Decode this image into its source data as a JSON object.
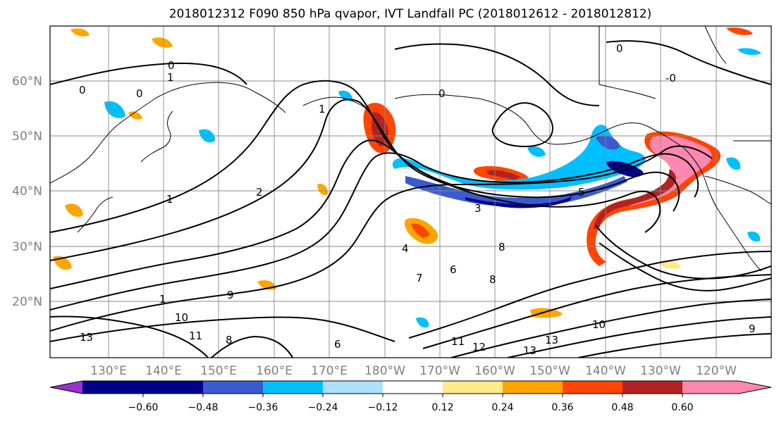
{
  "title": "2018012312 F090 850 hPa qvapor, IVT Landfall PC (2018012612 - 2018012812)",
  "latitude_labels": [
    "60°N",
    "50°N",
    "40°N",
    "30°N",
    "20°N"
  ],
  "longitude_labels": [
    "130°E",
    "140°E",
    "150°E",
    "160°E",
    "170°E",
    "180°W",
    "170°W",
    "160°W",
    "150°W",
    "140°W",
    "130°W",
    "120°W"
  ],
  "colorbar": {
    "colors": [
      "#9932cc",
      "#00008b",
      "#3a5bcf",
      "#00bfff",
      "#b0e0ff",
      "#ffffff",
      "#ffeb8a",
      "#ffa500",
      "#ff4500",
      "#b22222",
      "#ff88b0"
    ],
    "tick_labels": [
      "−0.60",
      "−0.48",
      "−0.36",
      "−0.24",
      "−0.12",
      "0.12",
      "0.24",
      "0.36",
      "0.48",
      "0.60"
    ]
  },
  "contour_labels": [
    "0",
    "0",
    "0",
    "0",
    "0",
    "1",
    "1",
    "1",
    "2",
    "3",
    "4",
    "5",
    "6",
    "6",
    "7",
    "8",
    "8",
    "9",
    "10",
    "10",
    "11",
    "11",
    "12",
    "13",
    "13",
    "13",
    "9",
    "1",
    "8",
    "-0"
  ],
  "anomaly_colors": {
    "positive_strong": "#b22222",
    "positive_orange": "#ff4500",
    "positive_amber": "#ffa500",
    "positive_yellow": "#ffeb8a",
    "positive_pink": "#ff88b0",
    "negative_dark": "#00008b",
    "negative_blue": "#3a5bcf",
    "negative_cyan": "#00bfff",
    "negative_light": "#b0e0ff"
  }
}
